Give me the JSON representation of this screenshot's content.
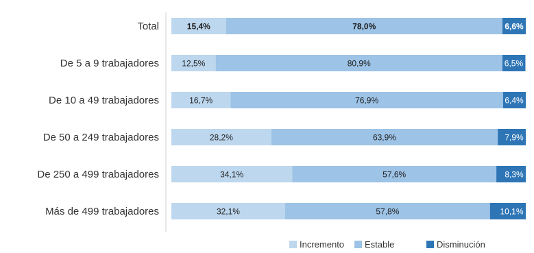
{
  "chart_data": {
    "type": "bar",
    "orientation": "horizontal",
    "stacked": true,
    "percent_scale": true,
    "categories": [
      "Total",
      "De 5 a 9 trabajadores",
      "De 10 a 49 trabajadores",
      "De 50 a 249 trabajadores",
      "De 250 a 499 trabajadores",
      "Más de 499 trabajadores"
    ],
    "series": [
      {
        "name": "Incremento",
        "color": "#bdd7ee",
        "values": [
          15.4,
          12.5,
          16.7,
          28.2,
          34.1,
          32.1
        ],
        "labels": [
          "15,4%",
          "12,5%",
          "16,7%",
          "28,2%",
          "34,1%",
          "32,1%"
        ]
      },
      {
        "name": "Estable",
        "color": "#9dc3e6",
        "values": [
          78.0,
          80.9,
          76.9,
          63.9,
          57.6,
          57.8
        ],
        "labels": [
          "78,0%",
          "80,9%",
          "76,9%",
          "63,9%",
          "57,6%",
          "57,8%"
        ]
      },
      {
        "name": "Disminución",
        "color": "#2e75b6",
        "values": [
          6.6,
          6.5,
          6.4,
          7.9,
          8.3,
          10.1
        ],
        "labels": [
          "6,6%",
          "6,5%",
          "6,4%",
          "7,9%",
          "8,3%",
          "10,1%"
        ]
      }
    ],
    "bold_category": "Total",
    "xlim": [
      0,
      100
    ],
    "legend_position": "bottom-right",
    "grid": false
  }
}
